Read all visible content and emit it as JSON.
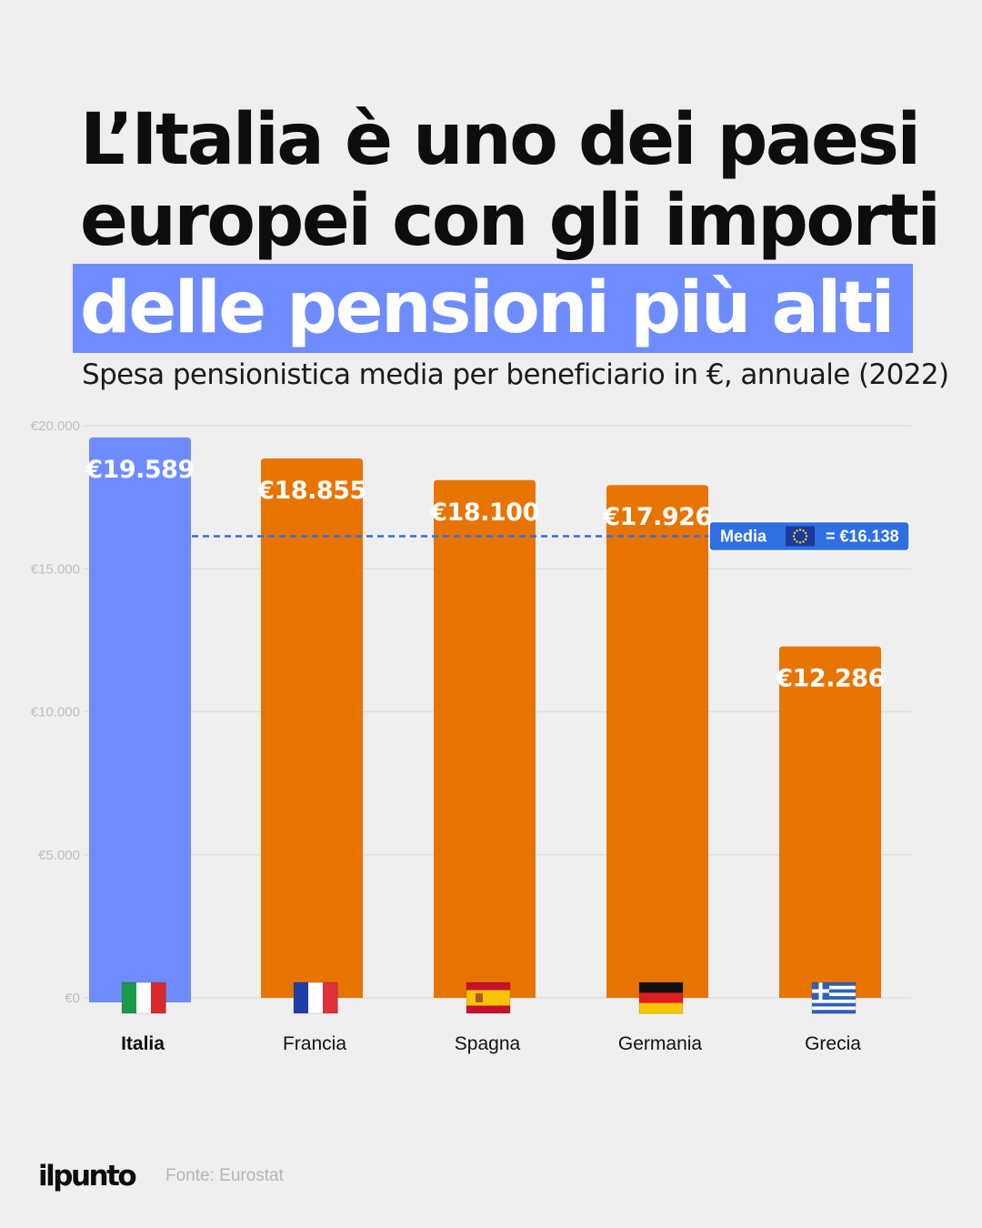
{
  "title": {
    "line1": "L’Italia è uno dei paesi",
    "line2": "europei con gli importi",
    "highlight": "delle pensioni più alti"
  },
  "subtitle": "Spesa pensionistica media per beneficiario in €, annuale (2022)",
  "chart_data": {
    "type": "bar",
    "categories": [
      "Italia",
      "Francia",
      "Spagna",
      "Germania",
      "Grecia"
    ],
    "values": [
      19589,
      18855,
      18100,
      17926,
      12286
    ],
    "value_labels": [
      "€19.589",
      "€18.855",
      "€18.100",
      "€17.926",
      "€12.286"
    ],
    "flags": [
      "italy-flag",
      "france-flag",
      "spain-flag",
      "germany-flag",
      "greece-flag"
    ],
    "highlight_category": "Italia",
    "ylim": [
      0,
      20000
    ],
    "yticks": [
      0,
      5000,
      10000,
      15000,
      20000
    ],
    "ytick_labels": [
      "€0",
      "€5.000",
      "€10.000",
      "€15.000",
      "€20.000"
    ],
    "grid": true,
    "reference_line": {
      "value": 16138,
      "label_prefix": "Media",
      "label_value": "= €16.138",
      "icon": "eu-flag"
    }
  },
  "colors": {
    "highlight": "#6f8cff",
    "bar": "#e87400",
    "reference": "#2f6fe0",
    "grid": "#dcdcdc",
    "tick_text": "#bcbcbc"
  },
  "footer": {
    "brand": "ilpunto",
    "source": "Fonte: Eurostat"
  }
}
